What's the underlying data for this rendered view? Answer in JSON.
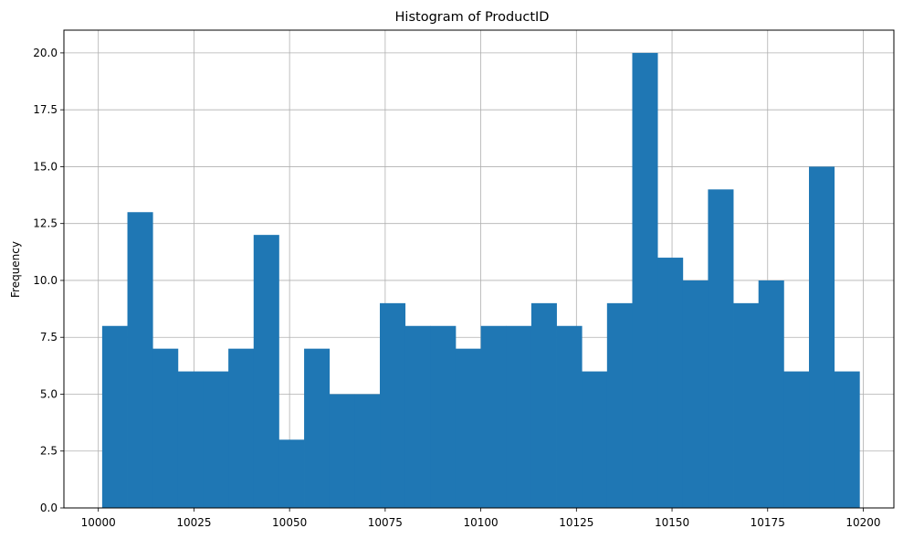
{
  "chart_data": {
    "type": "bar",
    "title": "Histogram of ProductID",
    "xlabel": "",
    "ylabel": "Frequency",
    "xlim": [
      9991,
      10208
    ],
    "ylim": [
      0,
      21
    ],
    "grid": true,
    "bar_color": "#1f77b4",
    "grid_color": "#b0b0b0",
    "x_ticks": [
      10000,
      10025,
      10050,
      10075,
      10100,
      10125,
      10150,
      10175,
      10200
    ],
    "y_ticks": [
      "0.0",
      "2.5",
      "5.0",
      "7.5",
      "10.0",
      "12.5",
      "15.0",
      "17.5",
      "20.0"
    ],
    "bin_edges": [
      10001,
      10007.6,
      10014.2,
      10020.8,
      10027.4,
      10034,
      10040.6,
      10047.2,
      10053.8,
      10060.4,
      10067,
      10073.6,
      10080.2,
      10086.8,
      10093.4,
      10100,
      10106.6,
      10113.2,
      10119.8,
      10126.4,
      10133,
      10139.6,
      10146.2,
      10152.8,
      10159.4,
      10166,
      10172.6,
      10179.2,
      10185.8,
      10192.4,
      10199
    ],
    "counts": [
      8,
      13,
      7,
      6,
      6,
      7,
      12,
      3,
      7,
      5,
      5,
      9,
      8,
      8,
      7,
      8,
      8,
      9,
      8,
      6,
      9,
      20,
      11,
      10,
      14,
      9,
      10,
      6,
      15,
      6
    ]
  }
}
